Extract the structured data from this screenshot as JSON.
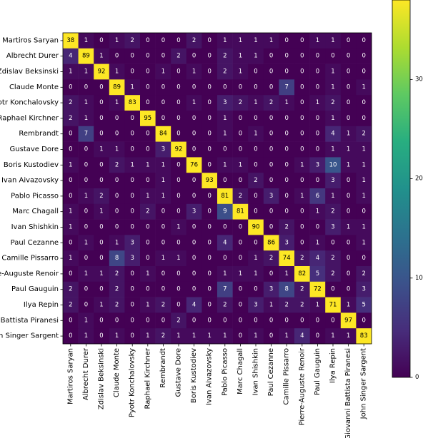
{
  "chart_data": {
    "type": "heatmap",
    "title": "",
    "xlabel": "",
    "ylabel": "",
    "row_labels": [
      "Martiros Saryan",
      "Albrecht Durer",
      "Zdislav Beksinski",
      "Claude Monte",
      "Pyotr Konchalovsky",
      "Raphael Kirchner",
      "Rembrandt",
      "Gustave Dore",
      "Boris Kustodiev",
      "Ivan Aivazovsky",
      "Pablo Picasso",
      "Marc Chagall",
      "Ivan Shishkin",
      "Paul Cezanne",
      "Camille Pissarro",
      "Pierre-Auguste Renoir",
      "Paul Gauguin",
      "Ilya Repin",
      "Giovanni Battista Piranesi",
      "John Singer Sargent"
    ],
    "col_labels": [
      "Martiros Saryan",
      "Albrecht Durer",
      "Zdislav Beksinski",
      "Claude Monte",
      "Pyotr Konchalovsky",
      "Raphael Kirchner",
      "Rembrandt",
      "Gustave Dore",
      "Boris Kustodiev",
      "Ivan Aivazovsky",
      "Pablo Picasso",
      "Marc Chagall",
      "Ivan Shishkin",
      "Paul Cezanne",
      "Camille Pissarro",
      "Pierre-Auguste Renoir",
      "Paul Gauguin",
      "Ilya Repin",
      "Giovanni Battista Piranesi",
      "John Singer Sargent"
    ],
    "values": [
      [
        38,
        1,
        0,
        1,
        2,
        0,
        0,
        0,
        2,
        0,
        1,
        1,
        1,
        1,
        0,
        0,
        1,
        1,
        0,
        0
      ],
      [
        4,
        89,
        1,
        0,
        0,
        0,
        0,
        2,
        0,
        0,
        2,
        1,
        1,
        0,
        0,
        0,
        0,
        0,
        0,
        0
      ],
      [
        1,
        1,
        92,
        1,
        0,
        0,
        1,
        0,
        1,
        0,
        2,
        1,
        0,
        0,
        0,
        0,
        0,
        1,
        0,
        0
      ],
      [
        0,
        0,
        0,
        89,
        1,
        0,
        0,
        0,
        0,
        0,
        0,
        0,
        0,
        0,
        7,
        0,
        0,
        1,
        0,
        1
      ],
      [
        2,
        1,
        0,
        1,
        83,
        0,
        0,
        0,
        1,
        0,
        3,
        2,
        1,
        2,
        1,
        0,
        1,
        2,
        0,
        0
      ],
      [
        2,
        1,
        0,
        0,
        0,
        95,
        0,
        0,
        0,
        0,
        1,
        0,
        0,
        0,
        0,
        0,
        0,
        1,
        0,
        0
      ],
      [
        0,
        7,
        0,
        0,
        0,
        0,
        84,
        0,
        0,
        0,
        1,
        0,
        1,
        0,
        0,
        0,
        0,
        4,
        1,
        2
      ],
      [
        0,
        0,
        1,
        1,
        0,
        0,
        3,
        92,
        0,
        0,
        0,
        0,
        0,
        0,
        0,
        0,
        0,
        1,
        1,
        1
      ],
      [
        1,
        0,
        0,
        2,
        1,
        1,
        1,
        0,
        76,
        0,
        1,
        1,
        0,
        0,
        0,
        1,
        3,
        10,
        1,
        1
      ],
      [
        0,
        0,
        0,
        0,
        0,
        0,
        1,
        0,
        0,
        93,
        0,
        0,
        2,
        0,
        0,
        0,
        0,
        3,
        0,
        1
      ],
      [
        0,
        1,
        2,
        0,
        0,
        1,
        1,
        0,
        0,
        0,
        81,
        2,
        0,
        3,
        0,
        1,
        6,
        1,
        0,
        1
      ],
      [
        1,
        0,
        1,
        0,
        0,
        2,
        0,
        0,
        3,
        0,
        9,
        81,
        0,
        0,
        0,
        0,
        1,
        2,
        0,
        0
      ],
      [
        1,
        0,
        0,
        0,
        0,
        0,
        0,
        1,
        0,
        0,
        0,
        0,
        90,
        0,
        2,
        0,
        0,
        3,
        1,
        1
      ],
      [
        0,
        1,
        0,
        1,
        3,
        0,
        0,
        0,
        0,
        0,
        4,
        0,
        0,
        86,
        3,
        0,
        1,
        0,
        0,
        1
      ],
      [
        1,
        0,
        0,
        8,
        3,
        0,
        1,
        1,
        0,
        0,
        0,
        0,
        1,
        2,
        74,
        2,
        4,
        2,
        0,
        0
      ],
      [
        0,
        1,
        1,
        2,
        0,
        1,
        0,
        0,
        0,
        0,
        1,
        1,
        1,
        0,
        1,
        82,
        5,
        2,
        0,
        2
      ],
      [
        2,
        0,
        0,
        2,
        0,
        0,
        0,
        0,
        0,
        0,
        7,
        0,
        0,
        3,
        8,
        2,
        72,
        0,
        0,
        3
      ],
      [
        2,
        0,
        1,
        2,
        0,
        1,
        2,
        0,
        4,
        0,
        2,
        0,
        3,
        1,
        2,
        2,
        1,
        71,
        1,
        5
      ],
      [
        0,
        1,
        0,
        0,
        0,
        0,
        0,
        2,
        0,
        0,
        0,
        0,
        0,
        0,
        0,
        0,
        0,
        0,
        97,
        0
      ],
      [
        0,
        1,
        0,
        1,
        0,
        1,
        2,
        1,
        1,
        1,
        1,
        0,
        1,
        0,
        1,
        4,
        0,
        1,
        1,
        83
      ]
    ],
    "colormap": "viridis",
    "color_range": [
      0,
      38
    ],
    "colorbar": {
      "ticks": [
        0,
        10,
        20,
        30
      ],
      "tick_labels": [
        "0",
        "10",
        "20",
        "30"
      ]
    },
    "grid": false
  }
}
